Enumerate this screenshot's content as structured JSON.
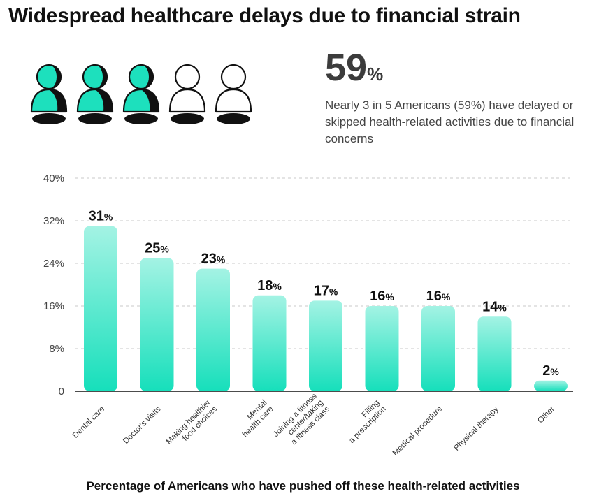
{
  "title": "Widespread healthcare delays due to financial strain",
  "stat": {
    "value": "59",
    "unit": "%",
    "text": "Nearly 3 in 5 Americans (59%) have delayed or skipped health-related activities due to financial concerns",
    "icons_filled": 3,
    "icons_total": 5
  },
  "colors": {
    "accent": "#1de0bd",
    "accent_light": "#9bf1e1",
    "icon_dark": "#111111"
  },
  "chart_data": {
    "type": "bar",
    "categories": [
      [
        "Dental care"
      ],
      [
        "Doctor's visits"
      ],
      [
        "Making healthier",
        "food choices"
      ],
      [
        "Mental",
        "health care"
      ],
      [
        "Joining a fitness",
        "center/taking",
        "a fitness class"
      ],
      [
        "Filling",
        "a prescription"
      ],
      [
        "Medical procedure"
      ],
      [
        "Physical therapy"
      ],
      [
        "Other"
      ]
    ],
    "values": [
      31,
      25,
      23,
      18,
      17,
      16,
      16,
      14,
      2
    ],
    "value_suffix": "%",
    "yticks": [
      "0",
      "8%",
      "16%",
      "24%",
      "32%",
      "40%"
    ],
    "ytick_values": [
      0,
      8,
      16,
      24,
      32,
      40
    ],
    "ylim": [
      0,
      40
    ],
    "grid": true,
    "xlabel": "Percentage of Americans who have pushed off these health-related activities",
    "ylabel": ""
  }
}
